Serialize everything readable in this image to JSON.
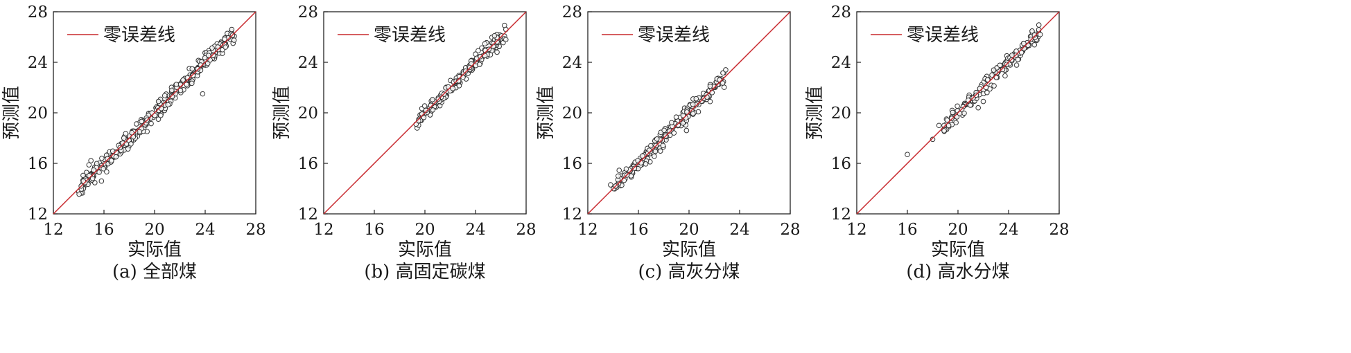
{
  "figure": {
    "legend_label": "零误差线",
    "xlabel": "实际值",
    "ylabel": "预测值",
    "colors": {
      "reference_line": "#c8282d",
      "marker_edge": "#333333",
      "axes": "#222222"
    }
  },
  "chart_data": [
    {
      "type": "scatter",
      "caption": "(a) 全部煤",
      "xlabel": "实际值",
      "ylabel": "预测值",
      "xlim": [
        12,
        28
      ],
      "ylim": [
        12,
        28
      ],
      "xticks": [
        12,
        16,
        20,
        24,
        28
      ],
      "yticks": [
        12,
        16,
        20,
        24,
        28
      ],
      "grid": false,
      "legend": {
        "position": "top-left",
        "entries": [
          "零误差线"
        ]
      },
      "reference_line": {
        "name": "零误差线",
        "from": [
          12,
          12
        ],
        "to": [
          28,
          28
        ]
      },
      "generator": {
        "n": 360,
        "xmin": 14.0,
        "xmax": 26.3,
        "spread": 0.35,
        "seed": 11
      },
      "outliers": [
        [
          15.8,
          14.6
        ],
        [
          23.8,
          21.5
        ],
        [
          26.1,
          26.6
        ],
        [
          25.6,
          25.2
        ],
        [
          14.2,
          14.2
        ]
      ]
    },
    {
      "type": "scatter",
      "caption": "(b) 高固定碳煤",
      "xlabel": "实际值",
      "ylabel": "预测值",
      "xlim": [
        12,
        28
      ],
      "ylim": [
        12,
        28
      ],
      "xticks": [
        12,
        16,
        20,
        24,
        28
      ],
      "yticks": [
        12,
        16,
        20,
        24,
        28
      ],
      "grid": false,
      "legend": {
        "position": "top-left",
        "entries": [
          "零误差线"
        ]
      },
      "reference_line": {
        "name": "零误差线",
        "from": [
          12,
          12
        ],
        "to": [
          28,
          28
        ]
      },
      "generator": {
        "n": 200,
        "xmin": 19.3,
        "xmax": 26.3,
        "spread": 0.28,
        "seed": 23
      },
      "outliers": [
        [
          26.4,
          26.6
        ],
        [
          26.4,
          25.8
        ],
        [
          25.7,
          24.8
        ],
        [
          25.5,
          26.1
        ],
        [
          19.3,
          19.1
        ]
      ]
    },
    {
      "type": "scatter",
      "caption": "(c) 高灰分煤",
      "xlabel": "实际值",
      "ylabel": "预测值",
      "xlim": [
        12,
        28
      ],
      "ylim": [
        12,
        28
      ],
      "xticks": [
        12,
        16,
        20,
        24,
        28
      ],
      "yticks": [
        12,
        16,
        20,
        24,
        28
      ],
      "grid": false,
      "legend": {
        "position": "top-left",
        "entries": [
          "零误差线"
        ]
      },
      "reference_line": {
        "name": "零误差线",
        "from": [
          12,
          12
        ],
        "to": [
          28,
          28
        ]
      },
      "generator": {
        "n": 260,
        "xmin": 13.9,
        "xmax": 22.8,
        "spread": 0.32,
        "seed": 37
      },
      "outliers": [
        [
          22.9,
          23.4
        ],
        [
          13.8,
          14.3
        ],
        [
          14.4,
          15.0
        ],
        [
          19.8,
          18.6
        ]
      ]
    },
    {
      "type": "scatter",
      "caption": "(d) 高水分煤",
      "xlabel": "实际值",
      "ylabel": "预测值",
      "xlim": [
        12,
        28
      ],
      "ylim": [
        12,
        28
      ],
      "xticks": [
        12,
        16,
        20,
        24,
        28
      ],
      "yticks": [
        12,
        16,
        20,
        24,
        28
      ],
      "grid": false,
      "legend": {
        "position": "top-left",
        "entries": [
          "零误差线"
        ]
      },
      "reference_line": {
        "name": "零误差线",
        "from": [
          12,
          12
        ],
        "to": [
          28,
          28
        ]
      },
      "generator": {
        "n": 170,
        "xmin": 18.8,
        "xmax": 26.4,
        "spread": 0.3,
        "seed": 53
      },
      "outliers": [
        [
          16.0,
          16.7
        ],
        [
          18.0,
          17.9
        ],
        [
          18.5,
          19.0
        ],
        [
          18.9,
          19.0
        ],
        [
          26.5,
          26.2
        ],
        [
          21.6,
          20.4
        ],
        [
          22.0,
          20.9
        ]
      ]
    }
  ]
}
